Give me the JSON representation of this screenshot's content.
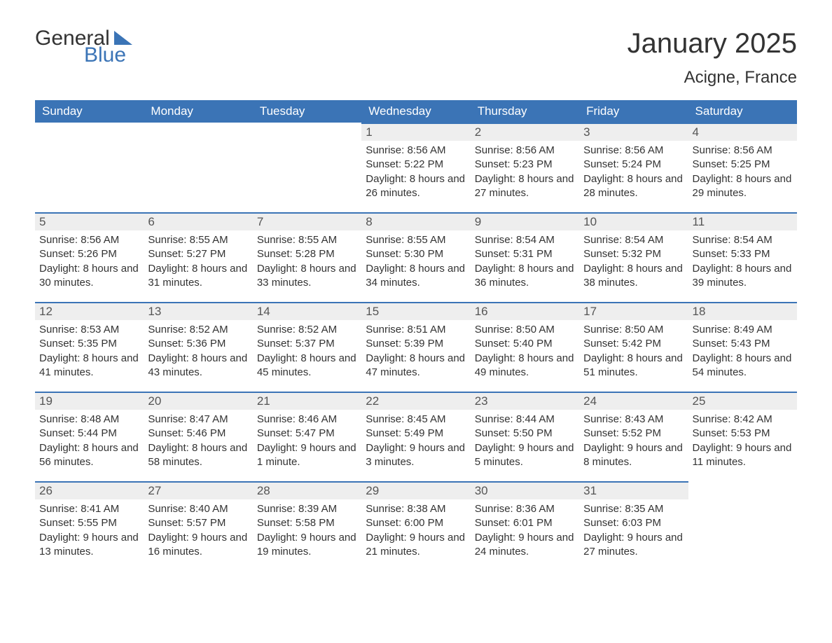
{
  "logo": {
    "word1": "General",
    "word2": "Blue"
  },
  "title": "January 2025",
  "location": "Acigne, France",
  "styling": {
    "accent_color": "#3b74b6",
    "header_bg": "#3b74b6",
    "header_text_color": "#ffffff",
    "daynum_bg": "#eeeeee",
    "body_text_color": "#333333",
    "title_fontsize_pt": 30,
    "location_fontsize_pt": 18,
    "cell_fontsize_pt": 11,
    "columns": 7,
    "rows": 5
  },
  "day_headers": [
    "Sunday",
    "Monday",
    "Tuesday",
    "Wednesday",
    "Thursday",
    "Friday",
    "Saturday"
  ],
  "weeks": [
    [
      {
        "blank": true
      },
      {
        "blank": true
      },
      {
        "blank": true
      },
      {
        "day": "1",
        "sunrise": "8:56 AM",
        "sunset": "5:22 PM",
        "daylight": "8 hours and 26 minutes."
      },
      {
        "day": "2",
        "sunrise": "8:56 AM",
        "sunset": "5:23 PM",
        "daylight": "8 hours and 27 minutes."
      },
      {
        "day": "3",
        "sunrise": "8:56 AM",
        "sunset": "5:24 PM",
        "daylight": "8 hours and 28 minutes."
      },
      {
        "day": "4",
        "sunrise": "8:56 AM",
        "sunset": "5:25 PM",
        "daylight": "8 hours and 29 minutes."
      }
    ],
    [
      {
        "day": "5",
        "sunrise": "8:56 AM",
        "sunset": "5:26 PM",
        "daylight": "8 hours and 30 minutes."
      },
      {
        "day": "6",
        "sunrise": "8:55 AM",
        "sunset": "5:27 PM",
        "daylight": "8 hours and 31 minutes."
      },
      {
        "day": "7",
        "sunrise": "8:55 AM",
        "sunset": "5:28 PM",
        "daylight": "8 hours and 33 minutes."
      },
      {
        "day": "8",
        "sunrise": "8:55 AM",
        "sunset": "5:30 PM",
        "daylight": "8 hours and 34 minutes."
      },
      {
        "day": "9",
        "sunrise": "8:54 AM",
        "sunset": "5:31 PM",
        "daylight": "8 hours and 36 minutes."
      },
      {
        "day": "10",
        "sunrise": "8:54 AM",
        "sunset": "5:32 PM",
        "daylight": "8 hours and 38 minutes."
      },
      {
        "day": "11",
        "sunrise": "8:54 AM",
        "sunset": "5:33 PM",
        "daylight": "8 hours and 39 minutes."
      }
    ],
    [
      {
        "day": "12",
        "sunrise": "8:53 AM",
        "sunset": "5:35 PM",
        "daylight": "8 hours and 41 minutes."
      },
      {
        "day": "13",
        "sunrise": "8:52 AM",
        "sunset": "5:36 PM",
        "daylight": "8 hours and 43 minutes."
      },
      {
        "day": "14",
        "sunrise": "8:52 AM",
        "sunset": "5:37 PM",
        "daylight": "8 hours and 45 minutes."
      },
      {
        "day": "15",
        "sunrise": "8:51 AM",
        "sunset": "5:39 PM",
        "daylight": "8 hours and 47 minutes."
      },
      {
        "day": "16",
        "sunrise": "8:50 AM",
        "sunset": "5:40 PM",
        "daylight": "8 hours and 49 minutes."
      },
      {
        "day": "17",
        "sunrise": "8:50 AM",
        "sunset": "5:42 PM",
        "daylight": "8 hours and 51 minutes."
      },
      {
        "day": "18",
        "sunrise": "8:49 AM",
        "sunset": "5:43 PM",
        "daylight": "8 hours and 54 minutes."
      }
    ],
    [
      {
        "day": "19",
        "sunrise": "8:48 AM",
        "sunset": "5:44 PM",
        "daylight": "8 hours and 56 minutes."
      },
      {
        "day": "20",
        "sunrise": "8:47 AM",
        "sunset": "5:46 PM",
        "daylight": "8 hours and 58 minutes."
      },
      {
        "day": "21",
        "sunrise": "8:46 AM",
        "sunset": "5:47 PM",
        "daylight": "9 hours and 1 minute."
      },
      {
        "day": "22",
        "sunrise": "8:45 AM",
        "sunset": "5:49 PM",
        "daylight": "9 hours and 3 minutes."
      },
      {
        "day": "23",
        "sunrise": "8:44 AM",
        "sunset": "5:50 PM",
        "daylight": "9 hours and 5 minutes."
      },
      {
        "day": "24",
        "sunrise": "8:43 AM",
        "sunset": "5:52 PM",
        "daylight": "9 hours and 8 minutes."
      },
      {
        "day": "25",
        "sunrise": "8:42 AM",
        "sunset": "5:53 PM",
        "daylight": "9 hours and 11 minutes."
      }
    ],
    [
      {
        "day": "26",
        "sunrise": "8:41 AM",
        "sunset": "5:55 PM",
        "daylight": "9 hours and 13 minutes."
      },
      {
        "day": "27",
        "sunrise": "8:40 AM",
        "sunset": "5:57 PM",
        "daylight": "9 hours and 16 minutes."
      },
      {
        "day": "28",
        "sunrise": "8:39 AM",
        "sunset": "5:58 PM",
        "daylight": "9 hours and 19 minutes."
      },
      {
        "day": "29",
        "sunrise": "8:38 AM",
        "sunset": "6:00 PM",
        "daylight": "9 hours and 21 minutes."
      },
      {
        "day": "30",
        "sunrise": "8:36 AM",
        "sunset": "6:01 PM",
        "daylight": "9 hours and 24 minutes."
      },
      {
        "day": "31",
        "sunrise": "8:35 AM",
        "sunset": "6:03 PM",
        "daylight": "9 hours and 27 minutes."
      },
      {
        "blank": true
      }
    ]
  ],
  "labels": {
    "sunrise": "Sunrise: ",
    "sunset": "Sunset: ",
    "daylight": "Daylight: "
  }
}
